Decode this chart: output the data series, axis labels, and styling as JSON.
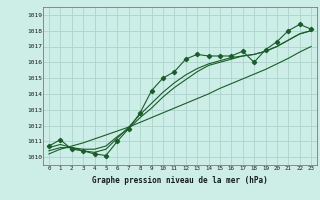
{
  "title": "Graphe pression niveau de la mer (hPa)",
  "bg_color": "#cceee6",
  "grid_color": "#aad4cc",
  "line_color": "#1a5c2a",
  "x_ticks": [
    0,
    1,
    2,
    3,
    4,
    5,
    6,
    7,
    8,
    9,
    10,
    11,
    12,
    13,
    14,
    15,
    16,
    17,
    18,
    19,
    20,
    21,
    22,
    23
  ],
  "y_min": 1009.5,
  "y_max": 1019.5,
  "y_ticks": [
    1010,
    1011,
    1012,
    1013,
    1014,
    1015,
    1016,
    1017,
    1018,
    1019
  ],
  "pressure_data": [
    1010.7,
    1011.1,
    1010.5,
    1010.4,
    1010.2,
    1010.1,
    1011.0,
    1011.8,
    1012.8,
    1014.2,
    1015.0,
    1015.4,
    1016.2,
    1016.5,
    1016.4,
    1016.4,
    1016.4,
    1016.7,
    1016.0,
    1016.8,
    1017.3,
    1018.0,
    1018.4,
    1018.1
  ],
  "smooth1": [
    1010.6,
    1010.8,
    1010.6,
    1010.4,
    1010.3,
    1010.5,
    1011.2,
    1011.9,
    1012.7,
    1013.4,
    1014.1,
    1014.7,
    1015.2,
    1015.6,
    1015.9,
    1016.1,
    1016.3,
    1016.4,
    1016.5,
    1016.7,
    1017.0,
    1017.4,
    1017.8,
    1018.0
  ],
  "smooth2": [
    1010.4,
    1010.6,
    1010.6,
    1010.5,
    1010.5,
    1010.7,
    1011.3,
    1011.8,
    1012.5,
    1013.1,
    1013.8,
    1014.4,
    1014.9,
    1015.4,
    1015.8,
    1016.0,
    1016.2,
    1016.4,
    1016.5,
    1016.7,
    1017.0,
    1017.4,
    1017.8,
    1018.0
  ],
  "trend": [
    1010.2,
    1010.5,
    1010.7,
    1010.9,
    1011.15,
    1011.4,
    1011.65,
    1011.9,
    1012.2,
    1012.5,
    1012.8,
    1013.1,
    1013.4,
    1013.7,
    1014.0,
    1014.35,
    1014.65,
    1014.95,
    1015.25,
    1015.55,
    1015.9,
    1016.25,
    1016.65,
    1017.0
  ]
}
